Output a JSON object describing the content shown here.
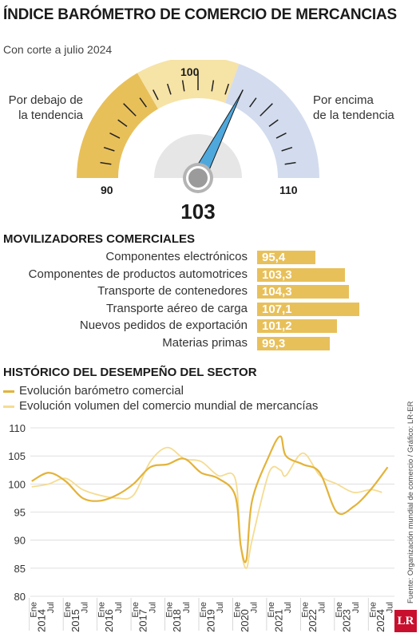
{
  "header": {
    "title": "ÍNDICE BARÓMETRO DE COMERCIO DE MERCANCIAS",
    "subtitle": "Con corte a julio 2024"
  },
  "gauge": {
    "value_label": "103",
    "value": 103,
    "min": 90,
    "max": 110,
    "min_label": "90",
    "mid_label": "100",
    "max_label": "110",
    "below_line1": "Por debajo de",
    "below_line2": "la tendencia",
    "above_line1": "Por encima",
    "above_line2": "de la tendencia",
    "colors": {
      "below": "#e8c05a",
      "neutral": "#f6e3a6",
      "above": "#d3dcee",
      "needle": "#4fa8dc"
    }
  },
  "movers": {
    "title": "MOVILIZADORES COMERCIALES",
    "items": [
      {
        "label": "Componentes electrónicos",
        "value_label": "95,4",
        "value": 95.4
      },
      {
        "label": "Componentes de productos automotrices",
        "value_label": "103,3",
        "value": 103.3
      },
      {
        "label": "Transporte de contenedores",
        "value_label": "104,3",
        "value": 104.3
      },
      {
        "label": "Transporte aéreo de carga",
        "value_label": "107,1",
        "value": 107.1
      },
      {
        "label": "Nuevos pedidos de exportación",
        "value_label": "101,2",
        "value": 101.2
      },
      {
        "label": "Materias primas",
        "value_label": "99,3",
        "value": 99.3
      }
    ]
  },
  "history": {
    "title": "HISTÓRICO DEL DESEMPEÑO DEL SECTOR",
    "legend": [
      "Evolución barómetro comercial",
      "Evolución volumen del comercio mundial de mercancías"
    ]
  },
  "source": "Fuente: Organización mundial de comercio / Gráfico: LR-ER",
  "logo": "LR",
  "chart_data": {
    "type": "line",
    "ylim": [
      80,
      110
    ],
    "yticks": [
      "110",
      "105",
      "100",
      "95",
      "90",
      "85",
      "80"
    ],
    "grid": true,
    "legend_position": "top-left",
    "x_tick_labels": [
      "Ene",
      "Jul"
    ],
    "years": [
      "2014",
      "2015",
      "2016",
      "2017",
      "2018",
      "2019",
      "2020",
      "2021",
      "2022",
      "2023",
      "2024"
    ],
    "colors": [
      "#e3b33a",
      "#f5dc92"
    ],
    "series": [
      {
        "name": "Evolución barómetro comercial",
        "x": [
          "2014-01",
          "2014-07",
          "2015-01",
          "2015-07",
          "2016-01",
          "2016-07",
          "2017-01",
          "2017-07",
          "2018-01",
          "2018-07",
          "2019-01",
          "2019-07",
          "2020-01",
          "2020-03",
          "2020-05",
          "2020-07",
          "2021-01",
          "2021-05",
          "2021-07",
          "2022-01",
          "2022-07",
          "2023-01",
          "2023-07",
          "2024-01",
          "2024-07"
        ],
        "y": [
          100.5,
          102,
          100.5,
          97.5,
          97,
          98,
          100,
          103,
          103.5,
          104.5,
          102,
          101,
          98,
          89,
          86.5,
          97,
          105,
          108.5,
          105,
          103.5,
          102,
          95,
          96,
          99,
          103
        ]
      },
      {
        "name": "Evolución volumen del comercio mundial de mercancías",
        "x": [
          "2014-01",
          "2014-07",
          "2015-01",
          "2015-07",
          "2016-01",
          "2016-07",
          "2017-01",
          "2017-07",
          "2018-01",
          "2018-07",
          "2019-01",
          "2019-07",
          "2020-01",
          "2020-03",
          "2020-05",
          "2020-07",
          "2021-01",
          "2021-05",
          "2021-07",
          "2022-01",
          "2022-07",
          "2023-01",
          "2023-07",
          "2024-01",
          "2024-05"
        ],
        "y": [
          99.5,
          100,
          101,
          99,
          98,
          97.5,
          98,
          104,
          106.5,
          104.5,
          104,
          101.5,
          101,
          89,
          85,
          90,
          102,
          102.5,
          101.5,
          105.5,
          101.5,
          100,
          98.5,
          99,
          98.5
        ]
      }
    ]
  }
}
